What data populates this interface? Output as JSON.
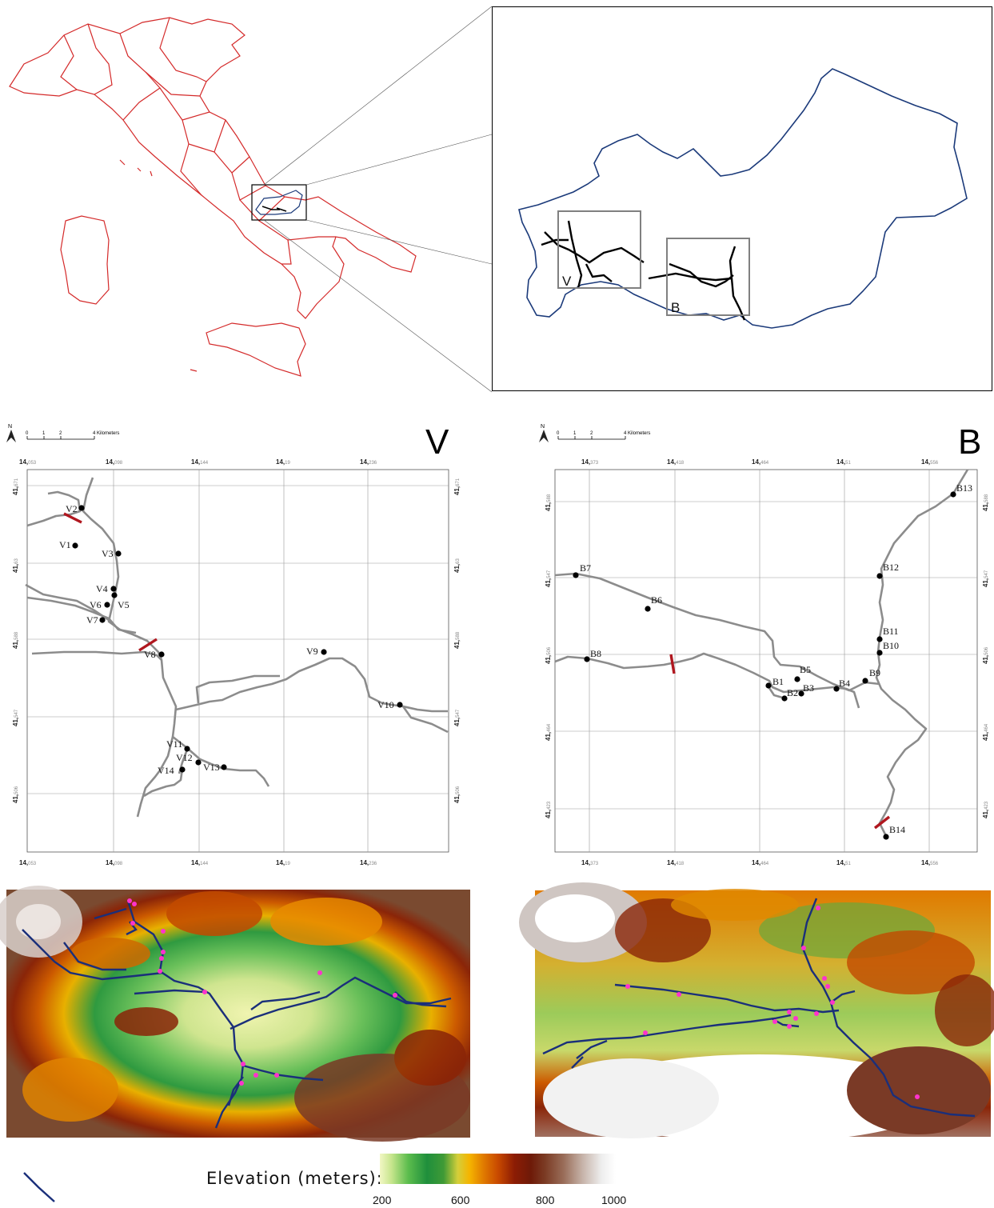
{
  "overview": {
    "inset_labels": [
      "V",
      "B"
    ]
  },
  "panel_v": {
    "letter": "V",
    "scale": [
      "0",
      "1",
      "2",
      "4 Kilometers"
    ],
    "north": "N",
    "x_ticks": [
      {
        "deg": "14,",
        "dec": "053"
      },
      {
        "deg": "14,",
        "dec": "098"
      },
      {
        "deg": "14,",
        "dec": "144"
      },
      {
        "deg": "14,",
        "dec": "19"
      },
      {
        "deg": "14,",
        "dec": "236"
      }
    ],
    "y_ticks": [
      {
        "deg": "41,",
        "dec": "671"
      },
      {
        "deg": "41,",
        "dec": "63"
      },
      {
        "deg": "41,",
        "dec": "588"
      },
      {
        "deg": "41,",
        "dec": "547"
      },
      {
        "deg": "41,",
        "dec": "506"
      }
    ],
    "points": [
      "V2",
      "V1",
      "V3",
      "V4",
      "V6",
      "V5",
      "V7",
      "V8",
      "V9",
      "V10",
      "V11",
      "V12",
      "V14",
      "V13"
    ]
  },
  "panel_b": {
    "letter": "B",
    "scale": [
      "0",
      "1",
      "2",
      "4 Kilometers"
    ],
    "north": "N",
    "x_ticks": [
      {
        "deg": "14,",
        "dec": "373"
      },
      {
        "deg": "14,",
        "dec": "418"
      },
      {
        "deg": "14,",
        "dec": "464"
      },
      {
        "deg": "14,",
        "dec": "51"
      },
      {
        "deg": "14,",
        "dec": "556"
      }
    ],
    "y_ticks": [
      {
        "deg": "41,",
        "dec": "588"
      },
      {
        "deg": "41,",
        "dec": "547"
      },
      {
        "deg": "41,",
        "dec": "506"
      },
      {
        "deg": "41,",
        "dec": "464"
      },
      {
        "deg": "41,",
        "dec": "423"
      }
    ],
    "points": [
      "B13",
      "B7",
      "B12",
      "B6",
      "B11",
      "B10",
      "B8",
      "B9",
      "B5",
      "B1",
      "B3",
      "B4",
      "B2",
      "B14"
    ]
  },
  "legend": {
    "title": "Elevation (meters):",
    "ticks": [
      "200",
      "600",
      "800",
      "1000"
    ]
  },
  "colors": {
    "italy_outline": "#d42a2a",
    "region_outline": "#1b3a7a",
    "river_gray": "#8c8c8c",
    "barrier_red": "#b0171f",
    "dem_river": "#1a2f7a",
    "dem_point": "#ff33cc"
  }
}
